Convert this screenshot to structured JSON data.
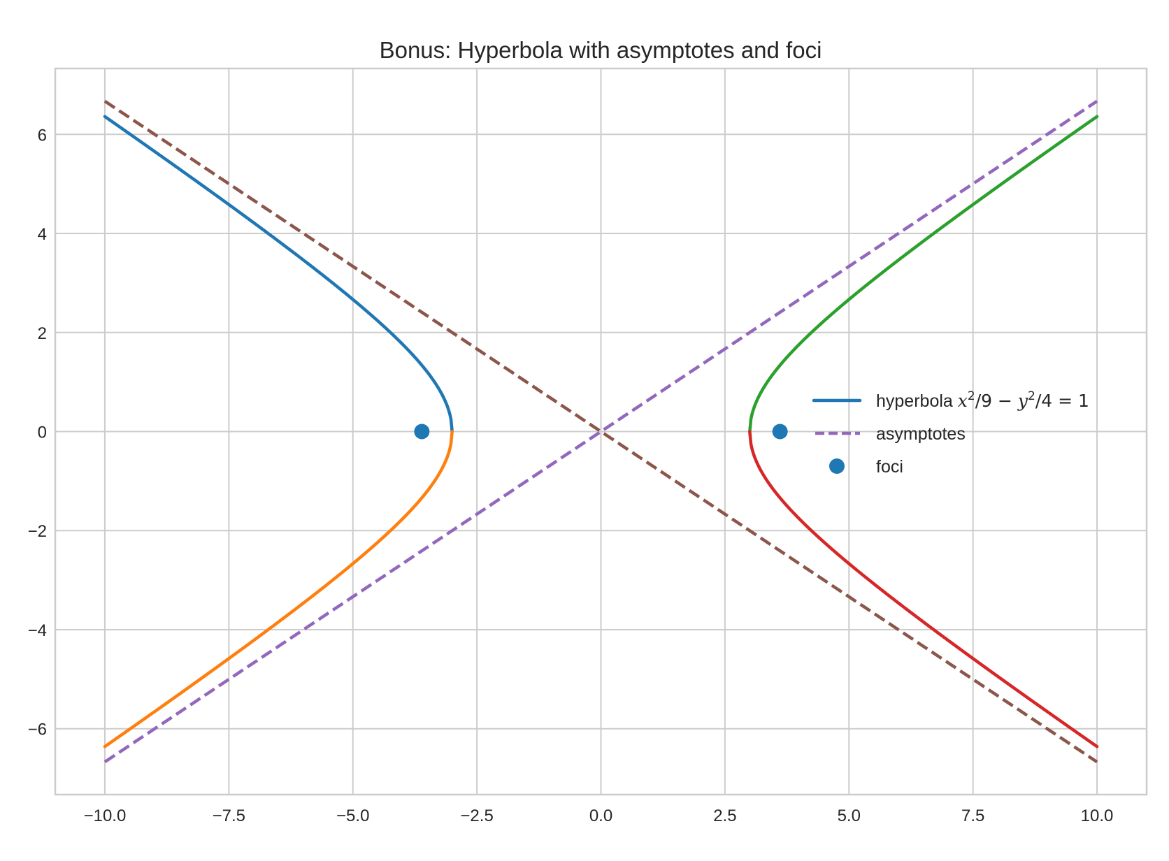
{
  "chart_data": {
    "type": "line",
    "title": "Bonus: Hyperbola with asymptotes and foci",
    "xlabel": "",
    "ylabel": "",
    "xlim": [
      -11,
      11
    ],
    "ylim": [
      -7.33,
      7.33
    ],
    "grid": true,
    "style": "seaborn-whitegrid",
    "xticks": [
      -10.0,
      -7.5,
      -5.0,
      -2.5,
      0.0,
      2.5,
      5.0,
      7.5,
      10.0
    ],
    "xtick_labels": [
      "−10.0",
      "−7.5",
      "−5.0",
      "−2.5",
      "0.0",
      "2.5",
      "5.0",
      "7.5",
      "10.0"
    ],
    "yticks": [
      -6,
      -4,
      -2,
      0,
      2,
      4,
      6
    ],
    "ytick_labels": [
      "−6",
      "−4",
      "−2",
      "0",
      "2",
      "4",
      "6"
    ],
    "equation": "x^2/9 - y^2/4 = 1",
    "a": 3,
    "b": 2,
    "series": [
      {
        "name": "hyperbola x^2/9 - y^2/4 = 1",
        "role": "left-upper branch",
        "color": "#1f77b4",
        "style": "solid",
        "x_range": [
          -10,
          -3
        ],
        "formula": "y = 2*sqrt(x^2/9 - 1)",
        "points": [
          [
            -10,
            6.36
          ],
          [
            -7.5,
            4.58
          ],
          [
            -5,
            2.67
          ],
          [
            -4,
            1.76
          ],
          [
            -3.5,
            1.03
          ],
          [
            -3,
            0
          ]
        ]
      },
      {
        "name": "",
        "role": "left-lower branch",
        "color": "#ff7f0e",
        "style": "solid",
        "x_range": [
          -10,
          -3
        ],
        "formula": "y = -2*sqrt(x^2/9 - 1)",
        "points": [
          [
            -10,
            -6.36
          ],
          [
            -7.5,
            -4.58
          ],
          [
            -5,
            -2.67
          ],
          [
            -4,
            -1.76
          ],
          [
            -3.5,
            -1.03
          ],
          [
            -3,
            0
          ]
        ]
      },
      {
        "name": "",
        "role": "right-upper branch",
        "color": "#2ca02c",
        "style": "solid",
        "x_range": [
          3,
          10
        ],
        "formula": "y = 2*sqrt(x^2/9 - 1)",
        "points": [
          [
            3,
            0
          ],
          [
            3.5,
            1.03
          ],
          [
            4,
            1.76
          ],
          [
            5,
            2.67
          ],
          [
            7.5,
            4.58
          ],
          [
            10,
            6.36
          ]
        ]
      },
      {
        "name": "",
        "role": "right-lower branch",
        "color": "#d62728",
        "style": "solid",
        "x_range": [
          3,
          10
        ],
        "formula": "y = -2*sqrt(x^2/9 - 1)",
        "points": [
          [
            3,
            0
          ],
          [
            3.5,
            -1.03
          ],
          [
            4,
            -1.76
          ],
          [
            5,
            -2.67
          ],
          [
            7.5,
            -4.58
          ],
          [
            10,
            -6.36
          ]
        ]
      },
      {
        "name": "asymptotes",
        "role": "asymptote y = (2/3)x",
        "color": "#9467bd",
        "style": "dashed",
        "points": [
          [
            -10,
            -6.67
          ],
          [
            10,
            6.67
          ]
        ]
      },
      {
        "name": "",
        "role": "asymptote y = -(2/3)x",
        "color": "#8c564b",
        "style": "dashed",
        "points": [
          [
            -10,
            6.67
          ],
          [
            10,
            -6.67
          ]
        ]
      },
      {
        "name": "foci",
        "role": "foci",
        "color": "#1f77b4",
        "style": "scatter",
        "points": [
          [
            -3.61,
            0
          ],
          [
            3.61,
            0
          ]
        ]
      }
    ],
    "legend": {
      "position": "center right",
      "entries": [
        {
          "label_prefix": "hyperbola ",
          "label_math": "x²/9 − y²/4 = 1",
          "color": "#1f77b4",
          "marker": "line"
        },
        {
          "label": "asymptotes",
          "color": "#9467bd",
          "marker": "dashed-line"
        },
        {
          "label": "foci",
          "color": "#1f77b4",
          "marker": "dot"
        }
      ]
    }
  }
}
